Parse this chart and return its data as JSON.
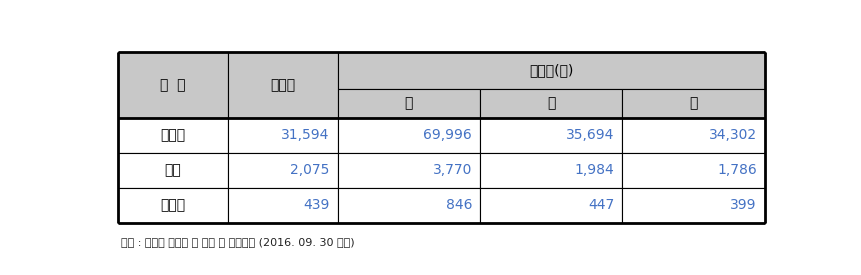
{
  "header_row1_col0": "구  분",
  "header_row1_col1": "세대수",
  "header_row1_col23": "인구수(명)",
  "header_row2": [
    "계",
    "남",
    "여"
  ],
  "rows": [
    [
      "홍천군",
      "31,594",
      "69,996",
      "35,694",
      "34,302"
    ],
    [
      "서면",
      "2,075",
      "3,770",
      "1,984",
      "1,786"
    ],
    [
      "모곡리",
      "439",
      "846",
      "447",
      "399"
    ]
  ],
  "footer": "출처 : 홍천군 읍면동 별 인구 및 세대현황 (2016. 09. 30 기준)",
  "header_bg": "#c8c8c8",
  "cell_bg": "#ffffff",
  "border_color": "#000000",
  "header_text_color": "#000000",
  "data_col0_color": "#000000",
  "data_other_color": "#4472c4",
  "fig_width": 8.61,
  "fig_height": 2.75,
  "dpi": 100
}
